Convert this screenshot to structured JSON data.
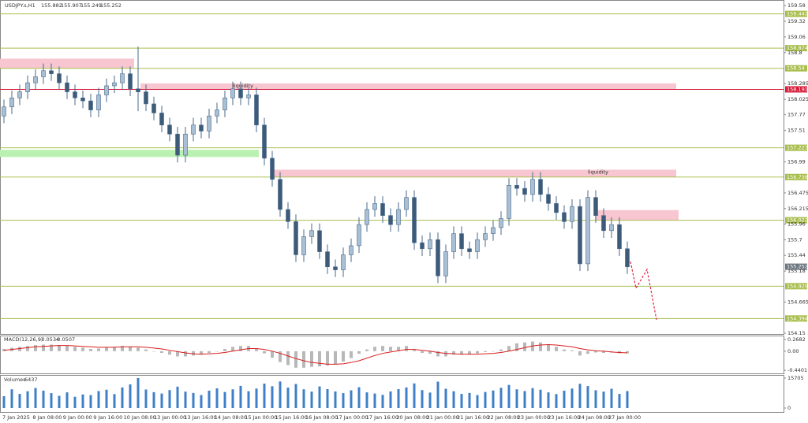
{
  "chart_data": {
    "type": "candlestick",
    "title": "USDJPY.s,H1",
    "header_values": [
      155.882,
      155.907,
      155.249,
      155.252
    ],
    "open": [
      157.75,
      157.9,
      158.05,
      158.15,
      158.3,
      158.4,
      158.5,
      158.45,
      158.3,
      158.15,
      158.05,
      158.0,
      157.85,
      158.1,
      158.25,
      158.3,
      158.45,
      158.2,
      158.15,
      157.95,
      157.8,
      157.6,
      157.45,
      157.1,
      157.45,
      157.6,
      157.5,
      157.75,
      157.85,
      158.05,
      158.2,
      158.05,
      158.1,
      157.6,
      157.05,
      156.7,
      156.2,
      156.0,
      155.45,
      155.75,
      155.85,
      155.5,
      155.25,
      155.2,
      155.45,
      155.6,
      155.95,
      156.2,
      156.3,
      156.1,
      155.95,
      156.2,
      156.4,
      155.65,
      155.55,
      155.7,
      155.1,
      155.5,
      155.8,
      155.55,
      155.5,
      155.7,
      155.8,
      155.9,
      156.05,
      156.6,
      156.55,
      156.45,
      156.7,
      156.45,
      156.3,
      156.15,
      156.0,
      156.25,
      155.3,
      156.4,
      156.1,
      155.85,
      155.95,
      155.55
    ],
    "high": [
      158.02,
      158.17,
      158.27,
      158.42,
      158.52,
      158.62,
      158.62,
      158.57,
      158.42,
      158.27,
      158.17,
      158.12,
      158.22,
      158.37,
      158.42,
      158.57,
      158.57,
      158.9,
      158.27,
      158.07,
      157.92,
      157.72,
      157.57,
      157.57,
      157.72,
      157.72,
      157.87,
      157.97,
      158.17,
      158.32,
      158.32,
      158.22,
      158.22,
      157.72,
      157.17,
      156.82,
      156.32,
      156.12,
      155.87,
      155.97,
      155.97,
      155.62,
      155.37,
      155.57,
      155.72,
      156.07,
      156.32,
      156.42,
      156.42,
      156.22,
      156.32,
      156.52,
      156.52,
      155.77,
      155.82,
      155.82,
      155.62,
      155.92,
      155.92,
      155.67,
      155.82,
      155.92,
      156.02,
      156.17,
      156.72,
      156.72,
      156.67,
      156.82,
      156.82,
      156.57,
      156.42,
      156.27,
      156.37,
      156.37,
      156.52,
      156.52,
      156.22,
      156.07,
      156.07,
      155.67
    ],
    "low": [
      157.63,
      157.78,
      157.93,
      158.03,
      158.18,
      158.28,
      158.33,
      158.18,
      158.03,
      157.93,
      157.88,
      157.73,
      157.73,
      157.98,
      158.13,
      158.18,
      158.08,
      157.83,
      157.83,
      157.68,
      157.48,
      157.33,
      156.98,
      156.98,
      157.33,
      157.38,
      157.38,
      157.63,
      157.73,
      157.93,
      157.93,
      157.93,
      157.48,
      156.93,
      156.58,
      156.08,
      155.88,
      155.33,
      155.33,
      155.63,
      155.38,
      155.13,
      155.08,
      155.08,
      155.33,
      155.48,
      155.83,
      156.08,
      155.98,
      155.83,
      155.83,
      156.08,
      155.53,
      155.43,
      155.43,
      154.98,
      154.98,
      155.38,
      155.43,
      155.38,
      155.38,
      155.58,
      155.68,
      155.78,
      155.93,
      156.43,
      156.33,
      156.33,
      156.33,
      156.18,
      156.03,
      155.88,
      155.88,
      155.18,
      155.18,
      155.98,
      155.73,
      155.73,
      155.43,
      155.13
    ],
    "close": [
      157.9,
      158.05,
      158.15,
      158.3,
      158.4,
      158.5,
      158.45,
      158.3,
      158.15,
      158.05,
      158.0,
      157.85,
      158.1,
      158.25,
      158.3,
      158.45,
      158.2,
      158.15,
      157.95,
      157.8,
      157.6,
      157.45,
      157.1,
      157.45,
      157.6,
      157.5,
      157.75,
      157.85,
      158.05,
      158.2,
      158.05,
      158.1,
      157.6,
      157.05,
      156.7,
      156.2,
      156.0,
      155.45,
      155.75,
      155.85,
      155.5,
      155.25,
      155.2,
      155.45,
      155.6,
      155.95,
      156.2,
      156.3,
      156.1,
      155.95,
      156.2,
      156.4,
      155.65,
      155.55,
      155.7,
      155.1,
      155.5,
      155.8,
      155.55,
      155.5,
      155.7,
      155.8,
      155.9,
      156.05,
      156.6,
      156.55,
      156.45,
      156.7,
      156.45,
      156.3,
      156.15,
      156.0,
      156.25,
      155.3,
      156.4,
      156.1,
      155.85,
      155.95,
      155.55,
      155.25
    ],
    "up_color": "#a9bfd4",
    "down_color": "#3d5a78",
    "wick_color": "#4a6a8a",
    "ylim": [
      154.137,
      159.672
    ],
    "yticks": [
      159.58,
      159.32,
      159.06,
      158.8,
      158.285,
      158.025,
      157.77,
      157.51,
      156.99,
      156.475,
      156.215,
      155.96,
      155.7,
      155.44,
      155.18,
      154.665,
      154.15
    ],
    "levels": [
      159.442,
      158.874,
      158.54,
      157.223,
      156.738,
      156.022,
      154.929,
      154.394
    ],
    "level_color": "#a8bf4e",
    "resistance": 158.191,
    "resistance_color": "#d81e3c",
    "current_price": 155.252,
    "zones": [
      {
        "from": 158.7,
        "to": 158.54,
        "color": "#f7c6d0"
      },
      {
        "from": 158.29,
        "to": 158.19,
        "color": "#f7c6d0",
        "label": "liquidity"
      },
      {
        "from": 157.19,
        "to": 157.07,
        "color": "#b9f2b0"
      },
      {
        "from": 156.86,
        "to": 156.74,
        "color": "#f7c6d0",
        "label": "liquidity"
      },
      {
        "from": 156.19,
        "to": 156.02,
        "color": "#f7c6d0"
      }
    ],
    "x_labels": [
      "7 Jan 2025",
      "8 Jan 08:00",
      "9 Jan 00:00",
      "9 Jan 16:00",
      "10 Jan 08:00",
      "13 Jan 00:00",
      "13 Jan 16:00",
      "14 Jan 08:00",
      "15 Jan 00:00",
      "15 Jan 16:00",
      "16 Jan 08:00",
      "17 Jan 00:00",
      "17 Jan 16:00",
      "20 Jan 08:00",
      "21 Jan 00:00",
      "21 Jan 16:00",
      "22 Jan 08:00",
      "23 Jan 00:00",
      "23 Jan 16:00",
      "24 Jan 08:00",
      "27 Jan 00:00"
    ],
    "macd": {
      "title": "MACD(12,26,9)",
      "header_values": [
        -0.0534,
        -0.0507
      ],
      "ylim": [
        -0.51,
        0.34
      ],
      "yticks": [
        0.2682,
        {
          "value": 0,
          "label": "0.00"
        },
        -0.4401
      ],
      "hist_color": "#b8b8b8",
      "signal_color": "#d81e1e",
      "histogram": [
        0.05,
        0.08,
        0.1,
        0.12,
        0.14,
        0.15,
        0.15,
        0.14,
        0.12,
        0.1,
        0.08,
        0.05,
        0.06,
        0.08,
        0.1,
        0.12,
        0.1,
        0.08,
        0.04,
        0.0,
        -0.04,
        -0.08,
        -0.12,
        -0.12,
        -0.1,
        -0.08,
        -0.04,
        0.0,
        0.05,
        0.1,
        0.12,
        0.12,
        0.05,
        -0.05,
        -0.15,
        -0.25,
        -0.32,
        -0.38,
        -0.38,
        -0.36,
        -0.35,
        -0.33,
        -0.3,
        -0.24,
        -0.16,
        -0.06,
        0.04,
        0.1,
        0.12,
        0.1,
        0.1,
        0.12,
        0.04,
        -0.04,
        -0.06,
        -0.12,
        -0.12,
        -0.08,
        -0.08,
        -0.08,
        -0.05,
        -0.02,
        0.0,
        0.04,
        0.12,
        0.18,
        0.2,
        0.22,
        0.2,
        0.16,
        0.1,
        0.04,
        0.02,
        -0.1,
        -0.06,
        -0.03,
        -0.04,
        -0.03,
        -0.05,
        -0.05
      ],
      "signal": [
        0.02,
        0.04,
        0.06,
        0.08,
        0.1,
        0.11,
        0.12,
        0.13,
        0.13,
        0.12,
        0.11,
        0.1,
        0.09,
        0.09,
        0.09,
        0.1,
        0.1,
        0.1,
        0.09,
        0.07,
        0.05,
        0.02,
        -0.01,
        -0.04,
        -0.06,
        -0.07,
        -0.06,
        -0.05,
        -0.03,
        0.0,
        0.03,
        0.06,
        0.06,
        0.04,
        0.0,
        -0.05,
        -0.11,
        -0.17,
        -0.22,
        -0.26,
        -0.28,
        -0.3,
        -0.3,
        -0.29,
        -0.26,
        -0.22,
        -0.16,
        -0.1,
        -0.05,
        -0.02,
        0.01,
        0.04,
        0.04,
        0.02,
        0.0,
        -0.03,
        -0.05,
        -0.06,
        -0.07,
        -0.07,
        -0.07,
        -0.06,
        -0.05,
        -0.03,
        0.0,
        0.04,
        0.08,
        0.12,
        0.14,
        0.15,
        0.14,
        0.12,
        0.1,
        0.06,
        0.03,
        0.01,
        0.0,
        -0.02,
        -0.03,
        -0.04
      ]
    },
    "volumes": {
      "title": "Volumes",
      "header_value": 6437,
      "ylim": [
        0,
        16500
      ],
      "yticks": [
        15705,
        0
      ],
      "color": "#3f7fc8",
      "values": [
        6200,
        9800,
        7400,
        8800,
        10500,
        9100,
        7800,
        6400,
        8200,
        5900,
        7100,
        6800,
        8900,
        9600,
        7300,
        10800,
        12400,
        15705,
        9700,
        8300,
        7600,
        9400,
        11200,
        8600,
        7900,
        6800,
        9100,
        10300,
        8400,
        9800,
        11600,
        8800,
        10200,
        12800,
        11400,
        13900,
        10700,
        12600,
        9800,
        8600,
        11300,
        9900,
        8700,
        7800,
        9300,
        10900,
        8200,
        7600,
        6900,
        8700,
        9900,
        10800,
        12900,
        9400,
        8100,
        13800,
        10100,
        8800,
        7400,
        7900,
        6800,
        8400,
        9200,
        10600,
        12100,
        9800,
        8900,
        10400,
        9600,
        8200,
        7300,
        9100,
        10200,
        12700,
        11500,
        9300,
        8600,
        10100,
        7400,
        8900
      ]
    }
  }
}
